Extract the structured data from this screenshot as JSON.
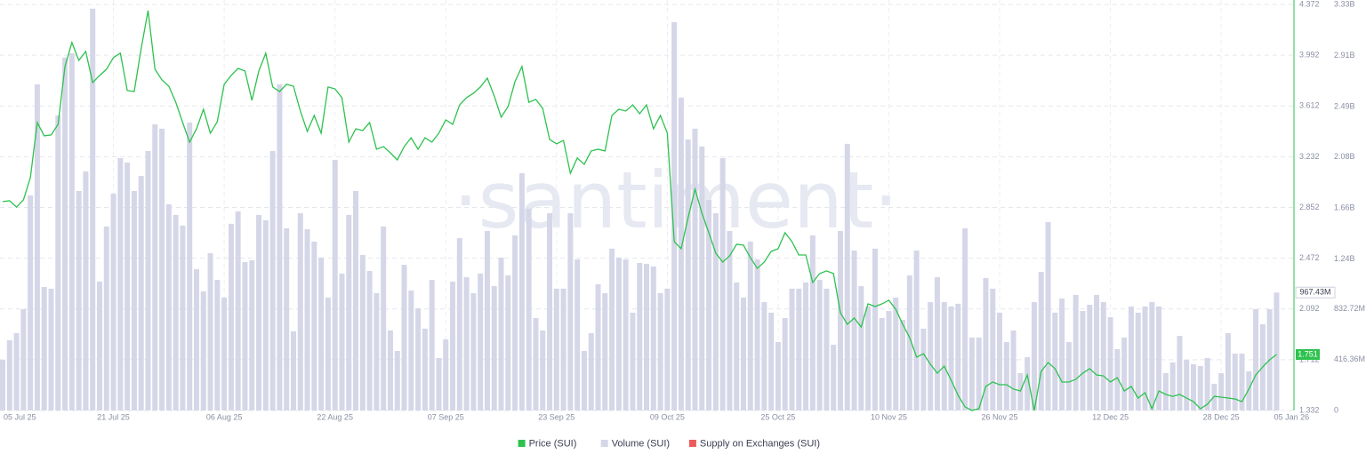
{
  "chart_data": {
    "type": "bar-line",
    "watermark": "·santiment·",
    "categories": [
      "05 Jul 25",
      null,
      null,
      null,
      null,
      null,
      null,
      null,
      null,
      null,
      null,
      null,
      null,
      null,
      null,
      null,
      "21 Jul 25",
      null,
      null,
      null,
      null,
      null,
      null,
      null,
      null,
      null,
      null,
      null,
      null,
      null,
      null,
      null,
      "06 Aug 25",
      null,
      null,
      null,
      null,
      null,
      null,
      null,
      null,
      null,
      null,
      null,
      null,
      null,
      null,
      null,
      "22 Aug 25",
      null,
      null,
      null,
      null,
      null,
      null,
      null,
      null,
      null,
      null,
      null,
      null,
      null,
      null,
      null,
      "07 Sep 25",
      null,
      null,
      null,
      null,
      null,
      null,
      null,
      null,
      null,
      null,
      null,
      null,
      null,
      null,
      null,
      "23 Sep 25",
      null,
      null,
      null,
      null,
      null,
      null,
      null,
      null,
      null,
      null,
      null,
      null,
      null,
      null,
      null,
      "09 Oct 25",
      null,
      null,
      null,
      null,
      null,
      null,
      null,
      null,
      null,
      null,
      null,
      null,
      null,
      null,
      null,
      "25 Oct 25",
      null,
      null,
      null,
      null,
      null,
      null,
      null,
      null,
      null,
      null,
      null,
      null,
      null,
      null,
      null,
      "10 Nov 25",
      null,
      null,
      null,
      null,
      null,
      null,
      null,
      null,
      null,
      null,
      null,
      null,
      null,
      null,
      null,
      "26 Nov 25",
      null,
      null,
      null,
      null,
      null,
      null,
      null,
      null,
      null,
      null,
      null,
      null,
      null,
      null,
      null,
      "12 Dec 25",
      null,
      null,
      null,
      null,
      null,
      null,
      null,
      null,
      null,
      null,
      null,
      null,
      null,
      null,
      null,
      "28 Dec 25",
      null,
      null,
      null,
      null,
      null,
      null,
      null,
      "05 Jan 26"
    ],
    "series": [
      {
        "name": "Price (SUI)",
        "color": "#2ec24f",
        "kind": "line",
        "last_label": "1.751",
        "values": [
          2.896,
          2.902,
          2.855,
          2.909,
          3.075,
          3.488,
          3.388,
          3.395,
          3.474,
          3.907,
          4.087,
          3.953,
          4.02,
          3.787,
          3.84,
          3.887,
          3.974,
          4.007,
          3.727,
          3.72,
          4.04,
          4.326,
          3.887,
          3.807,
          3.76,
          3.64,
          3.488,
          3.341,
          3.441,
          3.587,
          3.408,
          3.494,
          3.774,
          3.84,
          3.893,
          3.874,
          3.654,
          3.874,
          4.007,
          3.754,
          3.72,
          3.774,
          3.76,
          3.574,
          3.421,
          3.541,
          3.408,
          3.754,
          3.74,
          3.674,
          3.341,
          3.441,
          3.428,
          3.488,
          3.288,
          3.308,
          3.261,
          3.208,
          3.308,
          3.374,
          3.288,
          3.374,
          3.341,
          3.408,
          3.508,
          3.474,
          3.62,
          3.674,
          3.707,
          3.754,
          3.82,
          3.687,
          3.528,
          3.607,
          3.794,
          3.907,
          3.64,
          3.661,
          3.594,
          3.361,
          3.328,
          3.354,
          3.108,
          3.222,
          3.175,
          3.275,
          3.288,
          3.275,
          3.541,
          3.587,
          3.574,
          3.62,
          3.554,
          3.62,
          3.441,
          3.541,
          3.408,
          2.596,
          2.543,
          2.776,
          2.989,
          2.809,
          2.663,
          2.51,
          2.443,
          2.49,
          2.576,
          2.57,
          2.476,
          2.396,
          2.443,
          2.523,
          2.543,
          2.663,
          2.596,
          2.496,
          2.496,
          2.29,
          2.357,
          2.377,
          2.357,
          2.064,
          1.977,
          2.024,
          1.957,
          2.13,
          2.11,
          2.13,
          2.157,
          2.09,
          1.977,
          1.878,
          1.731,
          1.757,
          1.678,
          1.611,
          1.664,
          1.558,
          1.445,
          1.359,
          1.332,
          1.345,
          1.512,
          1.545,
          1.525,
          1.525,
          1.492,
          1.478,
          1.598,
          1.332,
          1.625,
          1.691,
          1.645,
          1.545,
          1.545,
          1.565,
          1.611,
          1.645,
          1.598,
          1.591,
          1.545,
          1.578,
          1.478,
          1.512,
          1.425,
          1.465,
          1.345,
          1.478,
          1.452,
          1.438,
          1.452,
          1.425,
          1.398,
          1.345,
          1.378,
          1.438,
          1.432,
          1.425,
          1.418,
          1.398,
          1.492,
          1.598,
          1.658,
          1.711,
          1.751
        ]
      },
      {
        "name": "Volume (SUI)",
        "color": "#d5d7e8",
        "kind": "bar",
        "axis": "y2",
        "last_label": "967.43M",
        "values": [
          415,
          576,
          634,
          831,
          1764,
          2675,
          1013,
          999,
          2420,
          2894,
          2930,
          1800,
          1961,
          3295,
          1057,
          1509,
          1779,
          2070,
          2034,
          1800,
          1924,
          2128,
          2347,
          2311,
          1691,
          1604,
          1516,
          2362,
          1159,
          977,
          1290,
          1071,
          926,
          1531,
          1633,
          1217,
          1232,
          1604,
          1560,
          2128,
          2675,
          1494,
          649,
          1618,
          1487,
          1385,
          1254,
          926,
          2055,
          1123,
          1604,
          1800,
          1276,
          1144,
          962,
          1509,
          656,
          488,
          1195,
          984,
          838,
          671,
          1071,
          430,
          583,
          1057,
          1414,
          1093,
          962,
          1123,
          1472,
          1020,
          1254,
          1108,
          1436,
          1946,
          1655,
          758,
          656,
          1618,
          999,
          999,
          1618,
          1239,
          488,
          634,
          1035,
          962,
          1327,
          1254,
          1239,
          802,
          1210,
          1203,
          1181,
          962,
          999,
          3185,
          2566,
          2223,
          2311,
          2165,
          1727,
          1618,
          2070,
          1472,
          1050,
          926,
          1385,
          1239,
          889,
          802,
          561,
          758,
          999,
          999,
          1050,
          1436,
          1071,
          999,
          539,
          1472,
          2187,
          1312,
          1020,
          853,
          1327,
          758,
          816,
          926,
          743,
          1108,
          1312,
          671,
          889,
          1093,
          889,
          853,
          875,
          1494,
          598,
          598,
          1086,
          999,
          802,
          561,
          656,
          306,
          437,
          889,
          1137,
          1545,
          802,
          918,
          561,
          948,
          816,
          867,
          948,
          889,
          765,
          503,
          598,
          853,
          802,
          853,
          889,
          853,
          306,
          394,
          612,
          415,
          379,
          364,
          430,
          219,
          306,
          634,
          466,
          466,
          321,
          831,
          707,
          831,
          967.43
        ]
      },
      {
        "name": "Supply on Exchanges (SUI)",
        "color": "#ec5b5b",
        "kind": "line"
      }
    ],
    "ylim": [
      1.332,
      4.372
    ],
    "yticks": [
      1.332,
      1.712,
      2.092,
      2.472,
      2.852,
      3.232,
      3.612,
      3.992,
      4.372
    ],
    "y2lim": [
      0,
      3330
    ],
    "y2ticks": [
      0,
      {
        "value": 416.36,
        "label": "416.36M"
      },
      {
        "value": 832.72,
        "label": "832.72M"
      },
      {
        "value": 1240,
        "label": "1.24B"
      },
      {
        "value": 1660,
        "label": "1.66B"
      },
      {
        "value": 2080,
        "label": "2.08B"
      },
      {
        "value": 2490,
        "label": "2.49B"
      },
      {
        "value": 2910,
        "label": "2.91B"
      },
      {
        "value": 3330,
        "label": "3.33B"
      }
    ],
    "grid": true,
    "legend": "bottom"
  }
}
